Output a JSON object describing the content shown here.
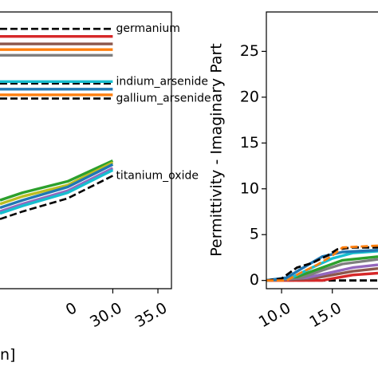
{
  "chart_data": [
    {
      "type": "line",
      "title": "",
      "xlabel": "",
      "xlabel_fragment": "n]",
      "ylabel": "",
      "xlim": [
        17.5,
        36.5
      ],
      "ylim": [
        -1.5,
        13.2
      ],
      "xticks": [
        30.0,
        35.0
      ],
      "xtick_labels": [
        "30.0",
        "35.0"
      ],
      "partial_xtick_labels": [
        {
          "x": 25.0,
          "text": "0"
        }
      ],
      "grid": false,
      "series": [
        {
          "name": "germanium",
          "color": "#000000",
          "dashed": true,
          "x": [
            17.5,
            30.0
          ],
          "y": [
            12.3,
            12.3
          ]
        },
        {
          "color": "#d62728",
          "x": [
            17.5,
            30.0
          ],
          "y": [
            11.9,
            11.9
          ]
        },
        {
          "color": "#8c564b",
          "x": [
            17.5,
            30.0
          ],
          "y": [
            11.5,
            11.5
          ]
        },
        {
          "color": "#ff7f0e",
          "x": [
            17.5,
            30.0
          ],
          "y": [
            11.2,
            11.2
          ]
        },
        {
          "color": "#7f7f7f",
          "x": [
            17.5,
            30.0
          ],
          "y": [
            10.9,
            10.9
          ]
        },
        {
          "name": "indium_arsenide",
          "color": "#000000",
          "dashed": true,
          "x": [
            17.5,
            30.0
          ],
          "y": [
            9.4,
            9.4
          ]
        },
        {
          "color": "#17becf",
          "x": [
            17.5,
            30.0
          ],
          "y": [
            9.5,
            9.5
          ]
        },
        {
          "color": "#1f77b4",
          "x": [
            17.5,
            30.0
          ],
          "y": [
            9.1,
            9.1
          ]
        },
        {
          "color": "#ff7f0e",
          "x": [
            17.5,
            30.0
          ],
          "y": [
            8.8,
            8.8
          ]
        },
        {
          "name": "gallium_arsenide",
          "color": "#000000",
          "dashed": true,
          "x": [
            17.5,
            30.0
          ],
          "y": [
            8.6,
            8.6
          ]
        },
        {
          "color": "#2ca02c",
          "x": [
            17.5,
            20.0,
            25.0,
            30.0
          ],
          "y": [
            3.2,
            3.6,
            4.2,
            5.3
          ]
        },
        {
          "color": "#bcbd22",
          "x": [
            17.5,
            20.0,
            25.0,
            30.0
          ],
          "y": [
            3.0,
            3.4,
            4.0,
            5.2
          ]
        },
        {
          "color": "#1f77b4",
          "x": [
            17.5,
            20.0,
            25.0,
            30.0
          ],
          "y": [
            2.8,
            3.2,
            3.9,
            5.1
          ]
        },
        {
          "color": "#9467bd",
          "x": [
            17.5,
            20.0,
            25.0,
            30.0
          ],
          "y": [
            2.6,
            3.0,
            3.7,
            4.9
          ]
        },
        {
          "color": "#17becf",
          "x": [
            17.5,
            20.0,
            25.0,
            30.0
          ],
          "y": [
            2.5,
            2.9,
            3.6,
            4.8
          ]
        },
        {
          "name": "titanium_oxide",
          "color": "#000000",
          "dashed": true,
          "x": [
            17.5,
            20.0,
            25.0,
            30.0
          ],
          "y": [
            2.2,
            2.6,
            3.3,
            4.5
          ]
        }
      ],
      "annotations": [
        {
          "text": "germanium",
          "x": 30.0,
          "y": 12.3
        },
        {
          "text": "indium_arsenide",
          "x": 30.0,
          "y": 9.5
        },
        {
          "text": "gallium_arsenide",
          "x": 30.0,
          "y": 8.6
        },
        {
          "text": "titanium_oxide",
          "x": 30.0,
          "y": 4.5
        }
      ]
    },
    {
      "type": "line",
      "title": "",
      "xlabel": "",
      "ylabel": "Permittivity - Imaginary Part",
      "xlim": [
        8.5,
        19.5
      ],
      "ylim": [
        -0.9,
        29.3
      ],
      "xticks": [
        10.0,
        15.0
      ],
      "xtick_labels": [
        "10.0",
        "15.0"
      ],
      "yticks": [
        0,
        5,
        10,
        15,
        20,
        25
      ],
      "ytick_labels": [
        "0",
        "5",
        "10",
        "15",
        "20",
        "25"
      ],
      "grid": false,
      "series": [
        {
          "color": "#000000",
          "dashed": true,
          "x": [
            8.5,
            19.5
          ],
          "y": [
            0.0,
            0.0
          ]
        },
        {
          "color": "#d62728",
          "x": [
            8.5,
            14.0,
            15.5,
            17.0,
            19.5
          ],
          "y": [
            0.0,
            0.0,
            0.3,
            0.6,
            0.8
          ]
        },
        {
          "color": "#8c564b",
          "x": [
            8.5,
            13.0,
            15.0,
            17.0,
            19.5
          ],
          "y": [
            0.0,
            0.2,
            0.6,
            1.0,
            1.3
          ]
        },
        {
          "color": "#9467bd",
          "x": [
            8.5,
            12.5,
            15.0,
            17.0,
            19.5
          ],
          "y": [
            0.0,
            0.3,
            0.9,
            1.4,
            1.7
          ]
        },
        {
          "color": "#7f7f7f",
          "x": [
            8.5,
            12.0,
            14.0,
            16.0,
            19.5
          ],
          "y": [
            0.0,
            0.3,
            1.1,
            1.8,
            2.3
          ]
        },
        {
          "color": "#2ca02c",
          "x": [
            8.5,
            11.5,
            14.0,
            16.0,
            19.5
          ],
          "y": [
            0.0,
            0.4,
            1.4,
            2.2,
            2.6
          ]
        },
        {
          "color": "#17becf",
          "x": [
            8.5,
            11.0,
            13.0,
            15.0,
            17.0,
            19.5
          ],
          "y": [
            0.0,
            0.3,
            1.4,
            2.4,
            3.0,
            3.2
          ]
        },
        {
          "color": "#1f77b4",
          "x": [
            8.5,
            10.5,
            12.0,
            14.0,
            16.0,
            19.5
          ],
          "y": [
            0.0,
            0.3,
            1.3,
            2.6,
            3.1,
            3.3
          ]
        },
        {
          "color": "#000000",
          "dashed": true,
          "x": [
            8.5,
            10.0,
            11.5,
            13.0,
            14.5,
            15.5,
            17.0,
            19.5
          ],
          "y": [
            0.0,
            0.2,
            1.4,
            1.9,
            2.7,
            3.4,
            3.6,
            3.6
          ]
        },
        {
          "color": "#ff7f0e",
          "dashed": true,
          "x": [
            8.5,
            10.5,
            12.0,
            13.5,
            15.0,
            16.0,
            19.5
          ],
          "y": [
            0.0,
            0.0,
            0.9,
            1.7,
            2.7,
            3.6,
            3.8
          ]
        }
      ]
    }
  ],
  "colors": {
    "background": "#ffffff",
    "axis": "#000000"
  }
}
